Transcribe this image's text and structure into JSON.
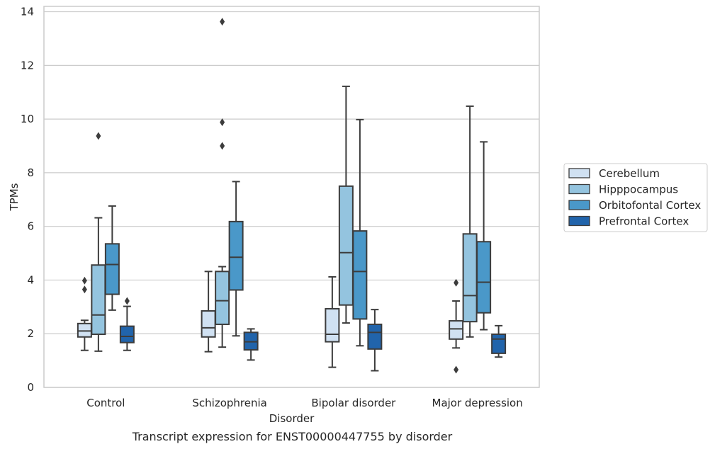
{
  "chart_data": {
    "type": "box",
    "title": "",
    "caption": "Transcript expression for ENST00000447755 by disorder",
    "xlabel": "Disorder",
    "ylabel": "TPMs",
    "ylim": [
      0,
      14.2
    ],
    "yticks": [
      0,
      2,
      4,
      6,
      8,
      10,
      12,
      14
    ],
    "grid": "horizontal",
    "legend_position": "right",
    "categories": [
      "Control",
      "Schizophrenia",
      "Bipolar disorder",
      "Major depression"
    ],
    "series": [
      {
        "name": "Cerebellum",
        "color": "#d0e1f2",
        "boxes": [
          {
            "whisker_low": 1.38,
            "q1": 1.88,
            "median": 2.1,
            "q3": 2.38,
            "whisker_high": 2.5,
            "outliers": [
              3.98,
              3.65
            ]
          },
          {
            "whisker_low": 1.33,
            "q1": 1.88,
            "median": 2.22,
            "q3": 2.85,
            "whisker_high": 4.32,
            "outliers": []
          },
          {
            "whisker_low": 0.75,
            "q1": 1.7,
            "median": 1.98,
            "q3": 2.93,
            "whisker_high": 4.12,
            "outliers": []
          },
          {
            "whisker_low": 1.47,
            "q1": 1.8,
            "median": 2.18,
            "q3": 2.48,
            "whisker_high": 3.22,
            "outliers": [
              3.9,
              0.66
            ]
          }
        ]
      },
      {
        "name": "Hipppocampus",
        "color": "#94c4df",
        "boxes": [
          {
            "whisker_low": 1.35,
            "q1": 1.98,
            "median": 2.7,
            "q3": 4.56,
            "whisker_high": 6.32,
            "outliers": [
              9.37
            ]
          },
          {
            "whisker_low": 1.5,
            "q1": 2.35,
            "median": 3.23,
            "q3": 4.32,
            "whisker_high": 4.5,
            "outliers": [
              13.63,
              9.88,
              9.0
            ]
          },
          {
            "whisker_low": 2.4,
            "q1": 3.07,
            "median": 5.02,
            "q3": 7.5,
            "whisker_high": 11.22,
            "outliers": []
          },
          {
            "whisker_low": 1.88,
            "q1": 2.45,
            "median": 3.42,
            "q3": 5.72,
            "whisker_high": 10.48,
            "outliers": []
          }
        ]
      },
      {
        "name": "Orbitofontal Cortex",
        "color": "#4a98c9",
        "boxes": [
          {
            "whisker_low": 2.88,
            "q1": 3.47,
            "median": 4.58,
            "q3": 5.35,
            "whisker_high": 6.76,
            "outliers": []
          },
          {
            "whisker_low": 1.92,
            "q1": 3.63,
            "median": 4.85,
            "q3": 6.18,
            "whisker_high": 7.67,
            "outliers": []
          },
          {
            "whisker_low": 1.55,
            "q1": 2.55,
            "median": 4.32,
            "q3": 5.83,
            "whisker_high": 9.98,
            "outliers": []
          },
          {
            "whisker_low": 2.15,
            "q1": 2.78,
            "median": 3.92,
            "q3": 5.43,
            "whisker_high": 9.15,
            "outliers": []
          }
        ]
      },
      {
        "name": "Prefrontal Cortex",
        "color": "#2164ab",
        "boxes": [
          {
            "whisker_low": 1.38,
            "q1": 1.67,
            "median": 1.9,
            "q3": 2.28,
            "whisker_high": 3.02,
            "outliers": [
              3.22
            ]
          },
          {
            "whisker_low": 1.02,
            "q1": 1.4,
            "median": 1.7,
            "q3": 2.05,
            "whisker_high": 2.18,
            "outliers": []
          },
          {
            "whisker_low": 0.62,
            "q1": 1.43,
            "median": 2.05,
            "q3": 2.35,
            "whisker_high": 2.9,
            "outliers": []
          },
          {
            "whisker_low": 1.13,
            "q1": 1.27,
            "median": 1.8,
            "q3": 1.98,
            "whisker_high": 2.3,
            "outliers": []
          }
        ]
      }
    ]
  }
}
